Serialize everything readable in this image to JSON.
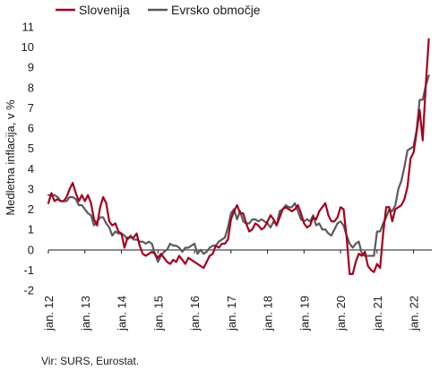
{
  "chart_data": {
    "type": "line",
    "ylabel": "Medletna inflacija, v %",
    "ylim": [
      -2,
      11
    ],
    "yticks": [
      -2,
      -1,
      0,
      1,
      2,
      3,
      4,
      5,
      6,
      7,
      8,
      9,
      10,
      11
    ],
    "xlim": [
      "2012-01",
      "2022-07"
    ],
    "xticks": [
      "jan. 12",
      "jan. 13",
      "jan. 14",
      "jan. 15",
      "jan. 16",
      "jan. 17",
      "jan. 18",
      "jan. 19",
      "jan. 20",
      "jan. 21",
      "jan. 22"
    ],
    "grid": false,
    "legend_position": "top-left",
    "source": "Vir: SURS, Eurostat.",
    "series": [
      {
        "name": "Slovenija",
        "color": "#a3001e",
        "points": [
          [
            "2012-01",
            2.3
          ],
          [
            "2012-02",
            2.8
          ],
          [
            "2012-03",
            2.4
          ],
          [
            "2012-04",
            2.5
          ],
          [
            "2012-05",
            2.4
          ],
          [
            "2012-06",
            2.4
          ],
          [
            "2012-07",
            2.6
          ],
          [
            "2012-08",
            3.0
          ],
          [
            "2012-09",
            3.3
          ],
          [
            "2012-10",
            2.8
          ],
          [
            "2012-11",
            2.4
          ],
          [
            "2012-12",
            2.7
          ],
          [
            "2013-01",
            2.4
          ],
          [
            "2013-02",
            2.7
          ],
          [
            "2013-03",
            2.3
          ],
          [
            "2013-04",
            1.5
          ],
          [
            "2013-05",
            1.2
          ],
          [
            "2013-06",
            2.1
          ],
          [
            "2013-07",
            2.6
          ],
          [
            "2013-08",
            2.3
          ],
          [
            "2013-09",
            1.4
          ],
          [
            "2013-10",
            1.2
          ],
          [
            "2013-11",
            1.3
          ],
          [
            "2013-12",
            0.9
          ],
          [
            "2014-01",
            0.8
          ],
          [
            "2014-02",
            0.1
          ],
          [
            "2014-03",
            0.6
          ],
          [
            "2014-04",
            0.6
          ],
          [
            "2014-05",
            0.6
          ],
          [
            "2014-06",
            0.8
          ],
          [
            "2014-07",
            0.2
          ],
          [
            "2014-08",
            -0.2
          ],
          [
            "2014-09",
            -0.3
          ],
          [
            "2014-10",
            -0.2
          ],
          [
            "2014-11",
            -0.1
          ],
          [
            "2014-12",
            -0.2
          ],
          [
            "2015-01",
            -0.4
          ],
          [
            "2015-02",
            -0.2
          ],
          [
            "2015-03",
            -0.4
          ],
          [
            "2015-04",
            -0.6
          ],
          [
            "2015-05",
            -0.7
          ],
          [
            "2015-06",
            -0.5
          ],
          [
            "2015-07",
            -0.6
          ],
          [
            "2015-08",
            -0.3
          ],
          [
            "2015-09",
            -0.5
          ],
          [
            "2015-10",
            -0.7
          ],
          [
            "2015-11",
            -0.4
          ],
          [
            "2015-12",
            -0.5
          ],
          [
            "2016-01",
            -0.6
          ],
          [
            "2016-02",
            -0.7
          ],
          [
            "2016-03",
            -0.8
          ],
          [
            "2016-04",
            -0.9
          ],
          [
            "2016-05",
            -0.6
          ],
          [
            "2016-06",
            -0.3
          ],
          [
            "2016-07",
            -0.2
          ],
          [
            "2016-08",
            0.2
          ],
          [
            "2016-09",
            0.1
          ],
          [
            "2016-10",
            0.3
          ],
          [
            "2016-11",
            0.3
          ],
          [
            "2016-12",
            0.5
          ],
          [
            "2017-01",
            1.5
          ],
          [
            "2017-02",
            1.9
          ],
          [
            "2017-03",
            2.2
          ],
          [
            "2017-04",
            1.8
          ],
          [
            "2017-05",
            1.8
          ],
          [
            "2017-06",
            1.3
          ],
          [
            "2017-07",
            0.9
          ],
          [
            "2017-08",
            1.0
          ],
          [
            "2017-09",
            1.3
          ],
          [
            "2017-10",
            1.2
          ],
          [
            "2017-11",
            1.0
          ],
          [
            "2017-12",
            1.1
          ],
          [
            "2018-01",
            1.4
          ],
          [
            "2018-02",
            1.7
          ],
          [
            "2018-03",
            1.5
          ],
          [
            "2018-04",
            1.2
          ],
          [
            "2018-05",
            1.6
          ],
          [
            "2018-06",
            2.0
          ],
          [
            "2018-07",
            2.1
          ],
          [
            "2018-08",
            2.0
          ],
          [
            "2018-09",
            1.9
          ],
          [
            "2018-10",
            2.0
          ],
          [
            "2018-11",
            2.2
          ],
          [
            "2018-12",
            1.8
          ],
          [
            "2019-01",
            1.3
          ],
          [
            "2019-02",
            1.1
          ],
          [
            "2019-03",
            1.2
          ],
          [
            "2019-04",
            1.6
          ],
          [
            "2019-05",
            1.5
          ],
          [
            "2019-06",
            1.9
          ],
          [
            "2019-07",
            2.1
          ],
          [
            "2019-08",
            2.3
          ],
          [
            "2019-09",
            1.7
          ],
          [
            "2019-10",
            1.4
          ],
          [
            "2019-11",
            1.4
          ],
          [
            "2019-12",
            1.6
          ],
          [
            "2020-01",
            2.1
          ],
          [
            "2020-02",
            2.0
          ],
          [
            "2020-03",
            0.6
          ],
          [
            "2020-04",
            -1.2
          ],
          [
            "2020-05",
            -1.2
          ],
          [
            "2020-06",
            -0.6
          ],
          [
            "2020-07",
            -0.2
          ],
          [
            "2020-08",
            -0.3
          ],
          [
            "2020-09",
            -0.1
          ],
          [
            "2020-10",
            -0.8
          ],
          [
            "2020-11",
            -1.0
          ],
          [
            "2020-12",
            -1.1
          ],
          [
            "2021-01",
            -0.7
          ],
          [
            "2021-02",
            -0.9
          ],
          [
            "2021-03",
            0.8
          ],
          [
            "2021-04",
            2.1
          ],
          [
            "2021-05",
            2.1
          ],
          [
            "2021-06",
            1.4
          ],
          [
            "2021-07",
            2.0
          ],
          [
            "2021-08",
            2.1
          ],
          [
            "2021-09",
            2.2
          ],
          [
            "2021-10",
            2.5
          ],
          [
            "2021-11",
            3.1
          ],
          [
            "2021-12",
            4.5
          ],
          [
            "2022-01",
            4.8
          ],
          [
            "2022-02",
            5.8
          ],
          [
            "2022-03",
            6.9
          ],
          [
            "2022-04",
            5.4
          ],
          [
            "2022-05",
            8.1
          ],
          [
            "2022-06",
            10.4
          ]
        ]
      },
      {
        "name": "Evrsko območje",
        "color": "#5a5a5a",
        "points": [
          [
            "2012-01",
            2.7
          ],
          [
            "2012-02",
            2.7
          ],
          [
            "2012-03",
            2.7
          ],
          [
            "2012-04",
            2.6
          ],
          [
            "2012-05",
            2.4
          ],
          [
            "2012-06",
            2.4
          ],
          [
            "2012-07",
            2.4
          ],
          [
            "2012-08",
            2.6
          ],
          [
            "2012-09",
            2.6
          ],
          [
            "2012-10",
            2.5
          ],
          [
            "2012-11",
            2.2
          ],
          [
            "2012-12",
            2.2
          ],
          [
            "2013-01",
            2.0
          ],
          [
            "2013-02",
            1.8
          ],
          [
            "2013-03",
            1.7
          ],
          [
            "2013-04",
            1.2
          ],
          [
            "2013-05",
            1.4
          ],
          [
            "2013-06",
            1.6
          ],
          [
            "2013-07",
            1.6
          ],
          [
            "2013-08",
            1.3
          ],
          [
            "2013-09",
            1.1
          ],
          [
            "2013-10",
            0.7
          ],
          [
            "2013-11",
            0.9
          ],
          [
            "2013-12",
            0.8
          ],
          [
            "2014-01",
            0.8
          ],
          [
            "2014-02",
            0.7
          ],
          [
            "2014-03",
            0.5
          ],
          [
            "2014-04",
            0.7
          ],
          [
            "2014-05",
            0.5
          ],
          [
            "2014-06",
            0.5
          ],
          [
            "2014-07",
            0.4
          ],
          [
            "2014-08",
            0.4
          ],
          [
            "2014-09",
            0.3
          ],
          [
            "2014-10",
            0.4
          ],
          [
            "2014-11",
            0.3
          ],
          [
            "2014-12",
            -0.2
          ],
          [
            "2015-01",
            -0.6
          ],
          [
            "2015-02",
            -0.3
          ],
          [
            "2015-03",
            -0.1
          ],
          [
            "2015-04",
            0.0
          ],
          [
            "2015-05",
            0.3
          ],
          [
            "2015-06",
            0.2
          ],
          [
            "2015-07",
            0.2
          ],
          [
            "2015-08",
            0.1
          ],
          [
            "2015-09",
            -0.1
          ],
          [
            "2015-10",
            0.1
          ],
          [
            "2015-11",
            0.1
          ],
          [
            "2015-12",
            0.2
          ],
          [
            "2016-01",
            0.3
          ],
          [
            "2016-02",
            -0.2
          ],
          [
            "2016-03",
            0.0
          ],
          [
            "2016-04",
            -0.2
          ],
          [
            "2016-05",
            -0.1
          ],
          [
            "2016-06",
            0.1
          ],
          [
            "2016-07",
            0.2
          ],
          [
            "2016-08",
            0.2
          ],
          [
            "2016-09",
            0.4
          ],
          [
            "2016-10",
            0.5
          ],
          [
            "2016-11",
            0.6
          ],
          [
            "2016-12",
            1.1
          ],
          [
            "2017-01",
            1.8
          ],
          [
            "2017-02",
            2.0
          ],
          [
            "2017-03",
            1.5
          ],
          [
            "2017-04",
            1.9
          ],
          [
            "2017-05",
            1.4
          ],
          [
            "2017-06",
            1.3
          ],
          [
            "2017-07",
            1.3
          ],
          [
            "2017-08",
            1.5
          ],
          [
            "2017-09",
            1.5
          ],
          [
            "2017-10",
            1.4
          ],
          [
            "2017-11",
            1.5
          ],
          [
            "2017-12",
            1.4
          ],
          [
            "2018-01",
            1.3
          ],
          [
            "2018-02",
            1.1
          ],
          [
            "2018-03",
            1.4
          ],
          [
            "2018-04",
            1.2
          ],
          [
            "2018-05",
            1.9
          ],
          [
            "2018-06",
            2.0
          ],
          [
            "2018-07",
            2.2
          ],
          [
            "2018-08",
            2.1
          ],
          [
            "2018-09",
            2.1
          ],
          [
            "2018-10",
            2.3
          ],
          [
            "2018-11",
            1.9
          ],
          [
            "2018-12",
            1.5
          ],
          [
            "2019-01",
            1.4
          ],
          [
            "2019-02",
            1.5
          ],
          [
            "2019-03",
            1.4
          ],
          [
            "2019-04",
            1.7
          ],
          [
            "2019-05",
            1.2
          ],
          [
            "2019-06",
            1.3
          ],
          [
            "2019-07",
            1.0
          ],
          [
            "2019-08",
            1.0
          ],
          [
            "2019-09",
            0.8
          ],
          [
            "2019-10",
            0.7
          ],
          [
            "2019-11",
            1.0
          ],
          [
            "2019-12",
            1.3
          ],
          [
            "2020-01",
            1.4
          ],
          [
            "2020-02",
            1.2
          ],
          [
            "2020-03",
            0.7
          ],
          [
            "2020-04",
            0.3
          ],
          [
            "2020-05",
            0.1
          ],
          [
            "2020-06",
            0.3
          ],
          [
            "2020-07",
            0.4
          ],
          [
            "2020-08",
            -0.2
          ],
          [
            "2020-09",
            -0.3
          ],
          [
            "2020-10",
            -0.3
          ],
          [
            "2020-11",
            -0.3
          ],
          [
            "2020-12",
            -0.3
          ],
          [
            "2021-01",
            0.9
          ],
          [
            "2021-02",
            0.9
          ],
          [
            "2021-03",
            1.3
          ],
          [
            "2021-04",
            1.6
          ],
          [
            "2021-05",
            2.0
          ],
          [
            "2021-06",
            1.9
          ],
          [
            "2021-07",
            2.2
          ],
          [
            "2021-08",
            3.0
          ],
          [
            "2021-09",
            3.4
          ],
          [
            "2021-10",
            4.1
          ],
          [
            "2021-11",
            4.9
          ],
          [
            "2021-12",
            5.0
          ],
          [
            "2022-01",
            5.1
          ],
          [
            "2022-02",
            5.9
          ],
          [
            "2022-03",
            7.4
          ],
          [
            "2022-04",
            7.4
          ],
          [
            "2022-05",
            8.1
          ],
          [
            "2022-06",
            8.6
          ]
        ]
      }
    ]
  }
}
